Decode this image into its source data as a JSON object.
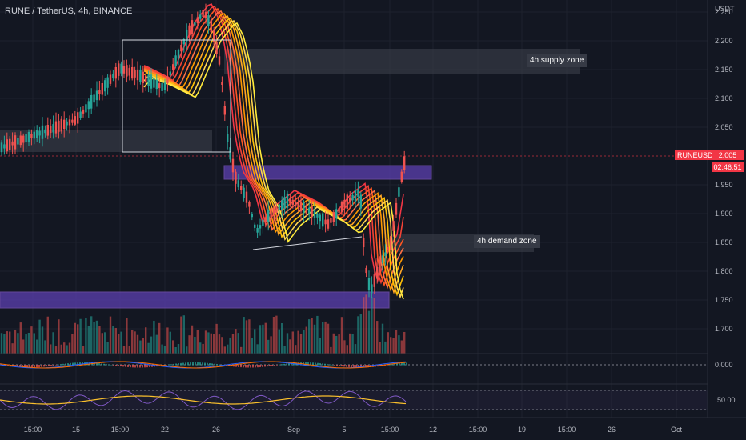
{
  "header": {
    "symbol_title": "RUNE / TetherUS, 4h, BINANCE",
    "currency": "USDT"
  },
  "annotations": {
    "supply_label": "4h supply zone",
    "demand_label": "4h demand zone"
  },
  "price_tag": {
    "symbol": "RUNEUSDT",
    "price": "2.005",
    "countdown": "02:46:51"
  },
  "colors": {
    "background": "#131722",
    "up": "#26a69a",
    "down": "#ef5350",
    "zone_grey": "#363a45",
    "zone_purple": "#5b3fb0",
    "ribbon_top": "#f23645",
    "ribbon_bottom": "#ffeb3b",
    "macd": "#2962ff",
    "signal": "#ff6d00",
    "rsi": "#7e57c2",
    "rsi_ma": "#fbc02d"
  },
  "chart_data": {
    "type": "candlestick",
    "symbol": "RUNE / TetherUS",
    "interval": "4h",
    "exchange": "BINANCE",
    "y_ticks": [
      "2.250",
      "2.200",
      "2.150",
      "2.100",
      "2.050",
      "1.950",
      "1.900",
      "1.850",
      "1.800",
      "1.750",
      "1.700"
    ],
    "x_ticks": [
      "15:00",
      "15",
      "15:00",
      "22",
      "26",
      "Sep",
      "5",
      "15:00",
      "12",
      "15:00",
      "19",
      "15:00",
      "26",
      "Oct"
    ],
    "close_price": 2.005,
    "price_samples": [
      {
        "x": "15",
        "price": 2.06
      },
      {
        "x": "22",
        "price": 2.12
      },
      {
        "x": "25",
        "price": 2.23
      },
      {
        "x": "27",
        "price": 1.96
      },
      {
        "x": "30",
        "price": 1.85
      },
      {
        "x": "Sep",
        "price": 1.91
      },
      {
        "x": "5",
        "price": 1.86
      },
      {
        "x": "7",
        "price": 1.77
      },
      {
        "x": "8",
        "price": 1.86
      },
      {
        "x": "9",
        "price": 2.005
      }
    ],
    "zones": [
      {
        "name": "4h supply zone",
        "low": 2.155,
        "high": 2.195
      },
      {
        "name": "4h demand zone",
        "low": 1.835,
        "high": 1.865
      },
      {
        "name": "purple zone",
        "low": 1.965,
        "high": 1.985
      },
      {
        "name": "purple zone",
        "low": 1.735,
        "high": 1.755
      }
    ],
    "oscillators": {
      "macd_zero": "0.000",
      "rsi_mid": "50.00"
    }
  }
}
